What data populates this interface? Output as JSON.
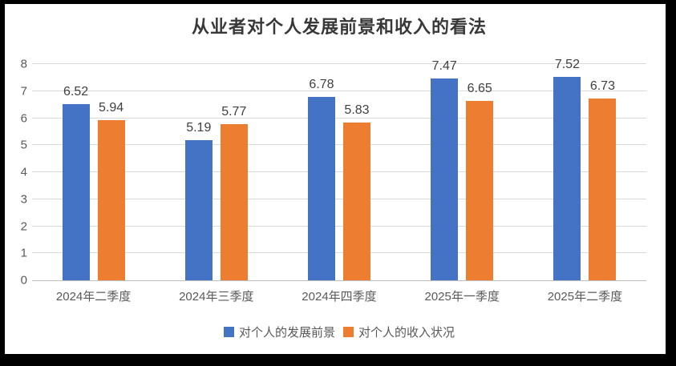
{
  "chart_data": {
    "type": "bar",
    "title": "从业者对个人发展前景和收入的看法",
    "categories": [
      "2024年二季度",
      "2024年三季度",
      "2024年四季度",
      "2025年一季度",
      "2025年二季度"
    ],
    "series": [
      {
        "name": "对个人的发展前景",
        "color": "#4472C4",
        "values": [
          6.52,
          5.19,
          6.78,
          7.47,
          7.52
        ]
      },
      {
        "name": "对个人的收入状况",
        "color": "#ED7D31",
        "values": [
          5.94,
          5.77,
          5.83,
          6.65,
          6.73
        ]
      }
    ],
    "xlabel": "",
    "ylabel": "",
    "ylim": [
      0,
      8
    ],
    "yticks": [
      0,
      1,
      2,
      3,
      4,
      5,
      6,
      7,
      8
    ],
    "grid": true,
    "legend_position": "bottom"
  },
  "colors": {
    "frame": "#000000",
    "panel_background": "#ffffff",
    "gridline": "#d9d9d9",
    "axis_line": "#bfbfbf",
    "title_text": "#383838",
    "value_label_text": "#404040",
    "axis_label_text": "#595959"
  }
}
